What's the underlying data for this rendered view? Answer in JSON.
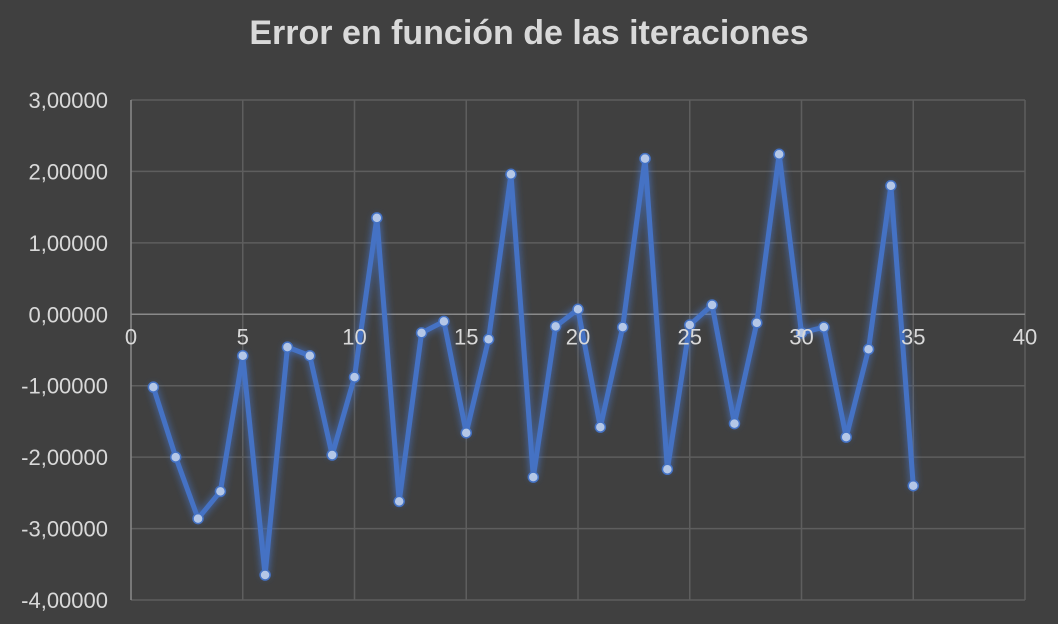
{
  "chart_data": {
    "type": "scatter",
    "title": "Error en función de las iteraciones",
    "xlabel": "",
    "ylabel": "",
    "xlim": [
      0,
      40
    ],
    "ylim": [
      -4,
      3
    ],
    "x_ticks": [
      0,
      5,
      10,
      15,
      20,
      25,
      30,
      35,
      40
    ],
    "x_tick_labels": [
      "0",
      "5",
      "10",
      "15",
      "20",
      "25",
      "30",
      "35",
      "40"
    ],
    "y_ticks": [
      3,
      2,
      1,
      0,
      -1,
      -2,
      -3,
      -4
    ],
    "y_tick_labels": [
      "3,00000",
      "2,00000",
      "1,00000",
      "0,00000",
      "-1,00000",
      "-2,00000",
      "-3,00000",
      "-4,00000"
    ],
    "grid": true,
    "legend": "none",
    "series": [
      {
        "style": "lines-and-markers",
        "color": "#4472c4",
        "x": [
          1,
          2,
          3,
          4,
          5,
          6,
          7,
          8,
          9,
          10,
          11,
          12,
          13,
          14,
          15,
          16,
          17,
          18,
          19,
          20,
          21,
          22,
          23,
          24,
          25,
          26,
          27,
          28,
          29,
          30,
          31,
          32,
          33,
          34,
          35
        ],
        "y": [
          -1.02,
          -2.0,
          -2.86,
          -2.48,
          -0.58,
          -3.65,
          -0.46,
          -0.58,
          -1.97,
          -0.88,
          1.35,
          -2.62,
          -0.26,
          -0.1,
          -1.66,
          -0.35,
          1.96,
          -2.28,
          -0.17,
          0.07,
          -1.58,
          -0.18,
          2.18,
          -2.17,
          -0.15,
          0.13,
          -1.53,
          -0.12,
          2.24,
          -0.26,
          -0.18,
          -1.72,
          -0.49,
          1.8,
          -2.4
        ]
      }
    ]
  },
  "colors": {
    "background": "#404040",
    "grid": "#5e5e5e",
    "line": "#4472c4",
    "marker": "#b4c7e7",
    "text": "#d9d9d9"
  }
}
